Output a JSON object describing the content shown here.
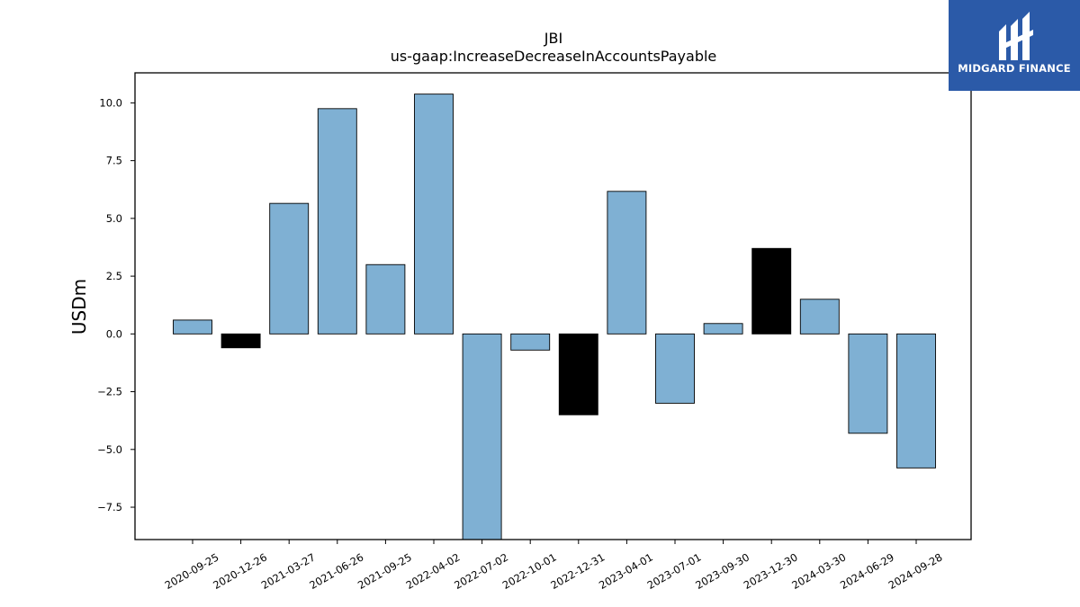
{
  "chart_data": {
    "type": "bar",
    "title": "JBI",
    "subtitle": "us-gaap:IncreaseDecreaseInAccountsPayable",
    "xlabel": "",
    "ylabel": "USDm",
    "ylim": [
      -8.9,
      11.3
    ],
    "yticks": [
      -7.5,
      -5.0,
      -2.5,
      0.0,
      2.5,
      5.0,
      7.5,
      10.0
    ],
    "ytick_labels": [
      "−7.5",
      "−5.0",
      "−2.5",
      "0.0",
      "2.5",
      "5.0",
      "7.5",
      "10.0"
    ],
    "grid": false,
    "categories": [
      "2020-09-25",
      "2020-12-26",
      "2021-03-27",
      "2021-06-26",
      "2021-09-25",
      "2022-04-02",
      "2022-07-02",
      "2022-10-01",
      "2022-12-31",
      "2023-04-01",
      "2023-07-01",
      "2023-09-30",
      "2023-12-30",
      "2024-03-30",
      "2024-06-29",
      "2024-09-28"
    ],
    "values": [
      0.6,
      -0.6,
      5.65,
      9.75,
      3.0,
      10.38,
      -9.2,
      -0.7,
      -3.5,
      6.17,
      -3.0,
      0.45,
      3.7,
      1.5,
      -4.3,
      -5.8
    ],
    "bar_colors": [
      "#7fb0d3",
      "#000000",
      "#7fb0d3",
      "#7fb0d3",
      "#7fb0d3",
      "#7fb0d3",
      "#7fb0d3",
      "#7fb0d3",
      "#000000",
      "#7fb0d3",
      "#7fb0d3",
      "#7fb0d3",
      "#000000",
      "#7fb0d3",
      "#7fb0d3",
      "#7fb0d3"
    ]
  },
  "logo": {
    "text": "MIDGARD FINANCE",
    "background": "#2b5aa8"
  }
}
